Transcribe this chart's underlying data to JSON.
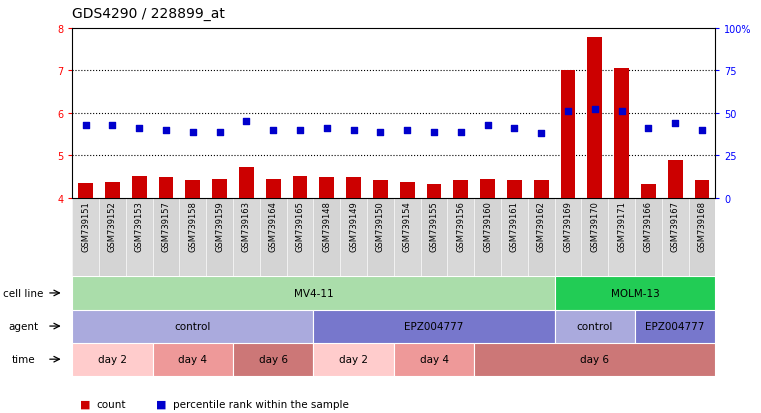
{
  "title": "GDS4290 / 228899_at",
  "samples": [
    "GSM739151",
    "GSM739152",
    "GSM739153",
    "GSM739157",
    "GSM739158",
    "GSM739159",
    "GSM739163",
    "GSM739164",
    "GSM739165",
    "GSM739148",
    "GSM739149",
    "GSM739150",
    "GSM739154",
    "GSM739155",
    "GSM739156",
    "GSM739160",
    "GSM739161",
    "GSM739162",
    "GSM739169",
    "GSM739170",
    "GSM739171",
    "GSM739166",
    "GSM739167",
    "GSM739168"
  ],
  "counts": [
    4.35,
    4.38,
    4.52,
    4.48,
    4.42,
    4.45,
    4.72,
    4.45,
    4.52,
    4.5,
    4.48,
    4.42,
    4.38,
    4.32,
    4.42,
    4.45,
    4.42,
    4.42,
    7.0,
    7.78,
    7.05,
    4.32,
    4.88,
    4.42
  ],
  "percentiles": [
    43,
    43,
    41,
    40,
    39,
    39,
    45,
    40,
    40,
    41,
    40,
    39,
    40,
    39,
    39,
    43,
    41,
    38,
    51,
    52,
    51,
    41,
    44,
    40
  ],
  "ylim_left": [
    4,
    8
  ],
  "yticks_left": [
    4,
    5,
    6,
    7,
    8
  ],
  "ytick_labels_right": [
    "0",
    "25",
    "50",
    "75",
    "100%"
  ],
  "yticks_right_pct": [
    0,
    25,
    50,
    75,
    100
  ],
  "bar_color": "#cc0000",
  "dot_color": "#0000cc",
  "cell_line_groups": [
    {
      "label": "MV4-11",
      "start": 0,
      "end": 18,
      "color": "#aaddaa"
    },
    {
      "label": "MOLM-13",
      "start": 18,
      "end": 24,
      "color": "#22cc55"
    }
  ],
  "agent_groups": [
    {
      "label": "control",
      "start": 0,
      "end": 9,
      "color": "#aaaadd"
    },
    {
      "label": "EPZ004777",
      "start": 9,
      "end": 18,
      "color": "#7777cc"
    },
    {
      "label": "control",
      "start": 18,
      "end": 21,
      "color": "#aaaadd"
    },
    {
      "label": "EPZ004777",
      "start": 21,
      "end": 24,
      "color": "#7777cc"
    }
  ],
  "time_groups": [
    {
      "label": "day 2",
      "start": 0,
      "end": 3,
      "color": "#ffcccc"
    },
    {
      "label": "day 4",
      "start": 3,
      "end": 6,
      "color": "#ee9999"
    },
    {
      "label": "day 6",
      "start": 6,
      "end": 9,
      "color": "#cc7777"
    },
    {
      "label": "day 2",
      "start": 9,
      "end": 12,
      "color": "#ffcccc"
    },
    {
      "label": "day 4",
      "start": 12,
      "end": 15,
      "color": "#ee9999"
    },
    {
      "label": "day 6",
      "start": 15,
      "end": 24,
      "color": "#cc7777"
    }
  ],
  "row_labels": [
    "cell line",
    "agent",
    "time"
  ],
  "legend_items": [
    "count",
    "percentile rank within the sample"
  ],
  "background_color": "#ffffff",
  "title_fontsize": 10,
  "tick_fontsize": 7,
  "label_fontsize": 7.5,
  "annot_fontsize": 7.5
}
